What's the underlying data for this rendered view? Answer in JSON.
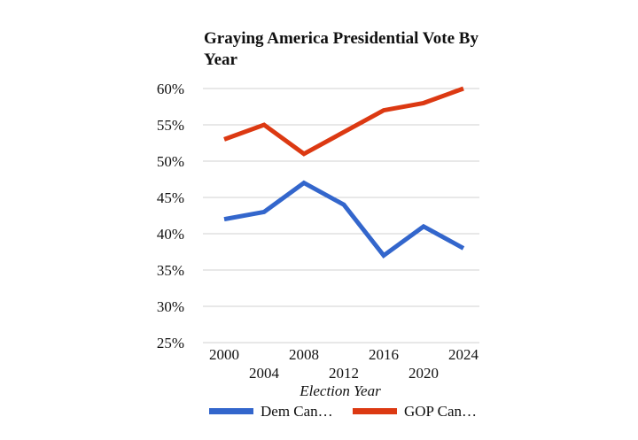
{
  "chart_data": {
    "type": "line",
    "title_lines": [
      "Graying America Presidential Vote By",
      "Year"
    ],
    "xlabel": "Election Year",
    "ylabel": "",
    "x": [
      "2000",
      "2004",
      "2008",
      "2012",
      "2016",
      "2020",
      "2024"
    ],
    "y_ticks": [
      "60%",
      "55%",
      "50%",
      "45%",
      "40%",
      "35%",
      "30%",
      "25%"
    ],
    "ylim": [
      25,
      60
    ],
    "grid": true,
    "legend_position": "bottom",
    "series": [
      {
        "name": "Dem Can…",
        "color": "#3366cc",
        "values": [
          42,
          43,
          47,
          44,
          37,
          41,
          38
        ]
      },
      {
        "name": "GOP Can…",
        "color": "#dc3912",
        "values": [
          53,
          55,
          51,
          54,
          57,
          58,
          60
        ]
      }
    ]
  }
}
